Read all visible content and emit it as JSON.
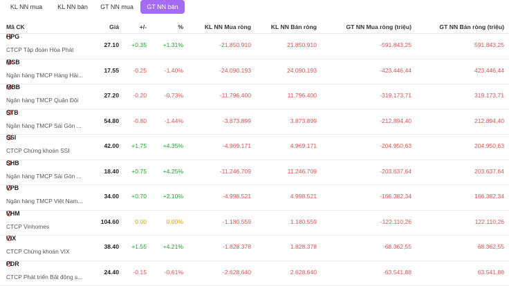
{
  "tabs": [
    {
      "label": "KL NN mua"
    },
    {
      "label": "KL NN bán"
    },
    {
      "label": "GT NN mua"
    },
    {
      "label": "GT NN bán"
    }
  ],
  "active_tab": 3,
  "columns": {
    "symbol": "Mã CK",
    "price": "Giá",
    "change": "+/-",
    "pct": "%",
    "kl_mua": "KL NN Mua ròng",
    "kl_ban": "KL NN Bán ròng",
    "gt_mua": "GT NN Mua ròng (triệu)",
    "gt_ban": "GT NN Bán ròng (triệu)"
  },
  "colors": {
    "up": "#1fa32a",
    "down": "#e0504f",
    "ref": "#d9a400",
    "accent": "#a46cf5"
  },
  "rows": [
    {
      "symbol": "HPG",
      "name": "CTCP Tập đoàn Hòa Phát",
      "price": "27.10",
      "change": "+0.35",
      "pct": "+1.31%",
      "kl_mua": "-21.850.910",
      "kl_ban": "21.850.910",
      "gt_mua": "-591.843,25",
      "gt_ban": "591.843,25",
      "trend": "up"
    },
    {
      "symbol": "MSB",
      "name": "Ngân hàng TMCP Hàng Hải...",
      "price": "17.55",
      "change": "-0.25",
      "pct": "-1.40%",
      "kl_mua": "-24.090.193",
      "kl_ban": "24.090.193",
      "gt_mua": "-423.446,44",
      "gt_ban": "423.446,44",
      "trend": "down"
    },
    {
      "symbol": "MBB",
      "name": "Ngân hàng TMCP Quân Đội",
      "price": "27.20",
      "change": "-0.20",
      "pct": "-0.73%",
      "kl_mua": "-11.796.400",
      "kl_ban": "11.796.400",
      "gt_mua": "-319.173,71",
      "gt_ban": "319.173,71",
      "trend": "down"
    },
    {
      "symbol": "STB",
      "name": "Ngân hàng TMCP Sài Gòn ...",
      "price": "54.80",
      "change": "-0.80",
      "pct": "-1.44%",
      "kl_mua": "-3.873.899",
      "kl_ban": "3.873.899",
      "gt_mua": "-212.894,40",
      "gt_ban": "212.894,40",
      "trend": "down"
    },
    {
      "symbol": "SSI",
      "name": "CTCP Chứng khoán SSI",
      "price": "42.00",
      "change": "+1.75",
      "pct": "+4.35%",
      "kl_mua": "-4.969.171",
      "kl_ban": "4.969.171",
      "gt_mua": "-204.950,63",
      "gt_ban": "204.950,63",
      "trend": "up"
    },
    {
      "symbol": "SHB",
      "name": "Ngân hàng TMCP Sài Gòn ...",
      "price": "18.40",
      "change": "+0.75",
      "pct": "+4.25%",
      "kl_mua": "-11.246.709",
      "kl_ban": "11.246.709",
      "gt_mua": "-203.637,64",
      "gt_ban": "203.637,64",
      "trend": "up"
    },
    {
      "symbol": "VPB",
      "name": "Ngân hàng TMCP Việt Nam...",
      "price": "34.00",
      "change": "+0.70",
      "pct": "+2.10%",
      "kl_mua": "-4.998.521",
      "kl_ban": "4.998.521",
      "gt_mua": "-166.382,34",
      "gt_ban": "166.382,34",
      "trend": "up"
    },
    {
      "symbol": "VHM",
      "name": "CTCP Vinhomes",
      "price": "104.60",
      "change": "0.00",
      "pct": "0.00%",
      "kl_mua": "-1.180.559",
      "kl_ban": "1.180.559",
      "gt_mua": "-122.110,26",
      "gt_ban": "122.110,26",
      "trend": "ref"
    },
    {
      "symbol": "VIX",
      "name": "CTCP Chứng khoán VIX",
      "price": "38.40",
      "change": "+1.55",
      "pct": "+4.21%",
      "kl_mua": "-1.828.378",
      "kl_ban": "1.828.378",
      "gt_mua": "-68.362,55",
      "gt_ban": "68.362,55",
      "trend": "up"
    },
    {
      "symbol": "PDR",
      "name": "CTCP Phát triển Bất động s...",
      "price": "24.40",
      "change": "-0.15",
      "pct": "-0.61%",
      "kl_mua": "-2.628.640",
      "kl_ban": "2.628.640",
      "gt_mua": "-63.541,88",
      "gt_ban": "63.541,88",
      "trend": "down"
    }
  ]
}
